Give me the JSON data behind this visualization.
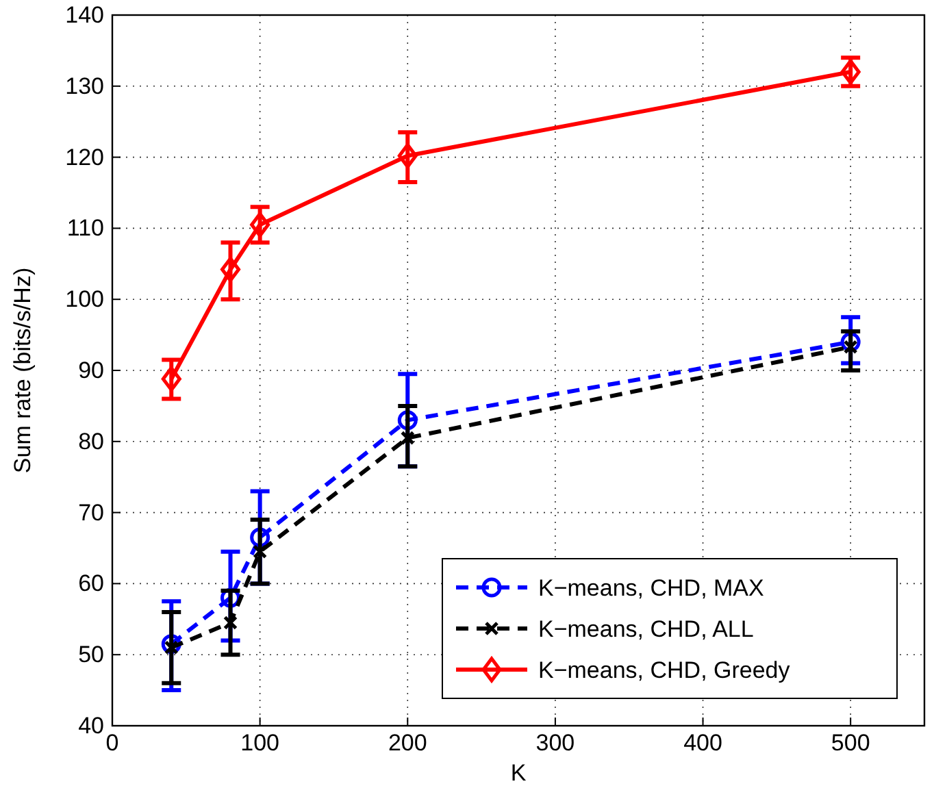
{
  "chart_data": {
    "type": "line",
    "xlabel": "K",
    "ylabel": "Sum rate (bits/s/Hz)",
    "x": [
      40,
      80,
      100,
      200,
      500
    ],
    "series": [
      {
        "name": "K−means, CHD, MAX",
        "color": "#0000ff",
        "marker": "circle",
        "line_style": "dashed",
        "values": [
          51.5,
          58,
          66.5,
          83,
          94
        ],
        "errors": [
          [
            45,
            57.5
          ],
          [
            52,
            64.5
          ],
          [
            60,
            73
          ],
          [
            76.5,
            89.5
          ],
          [
            91,
            97.5
          ]
        ]
      },
      {
        "name": "K−means, CHD, ALL",
        "color": "#000000",
        "marker": "cross",
        "line_style": "dashed",
        "values": [
          51,
          54.5,
          64.5,
          80.5,
          93.3
        ],
        "errors": [
          [
            46,
            56
          ],
          [
            50,
            59
          ],
          [
            60,
            69
          ],
          [
            76.5,
            85
          ],
          [
            90,
            95.5
          ]
        ]
      },
      {
        "name": "K−means, CHD, Greedy",
        "color": "#ff0000",
        "marker": "diamond",
        "line_style": "solid",
        "values": [
          88.8,
          104.2,
          110.5,
          120.2,
          132
        ],
        "errors": [
          [
            86,
            91.5
          ],
          [
            100,
            108
          ],
          [
            108,
            113
          ],
          [
            116.5,
            123.5
          ],
          [
            130,
            134
          ]
        ]
      }
    ],
    "xlim": [
      0,
      550
    ],
    "xticks": [
      0,
      100,
      200,
      300,
      400,
      500
    ],
    "ylim": [
      40,
      140
    ],
    "yticks": [
      40,
      50,
      60,
      70,
      80,
      90,
      100,
      110,
      120,
      130,
      140
    ],
    "grid": true,
    "legend": "bottom right"
  }
}
